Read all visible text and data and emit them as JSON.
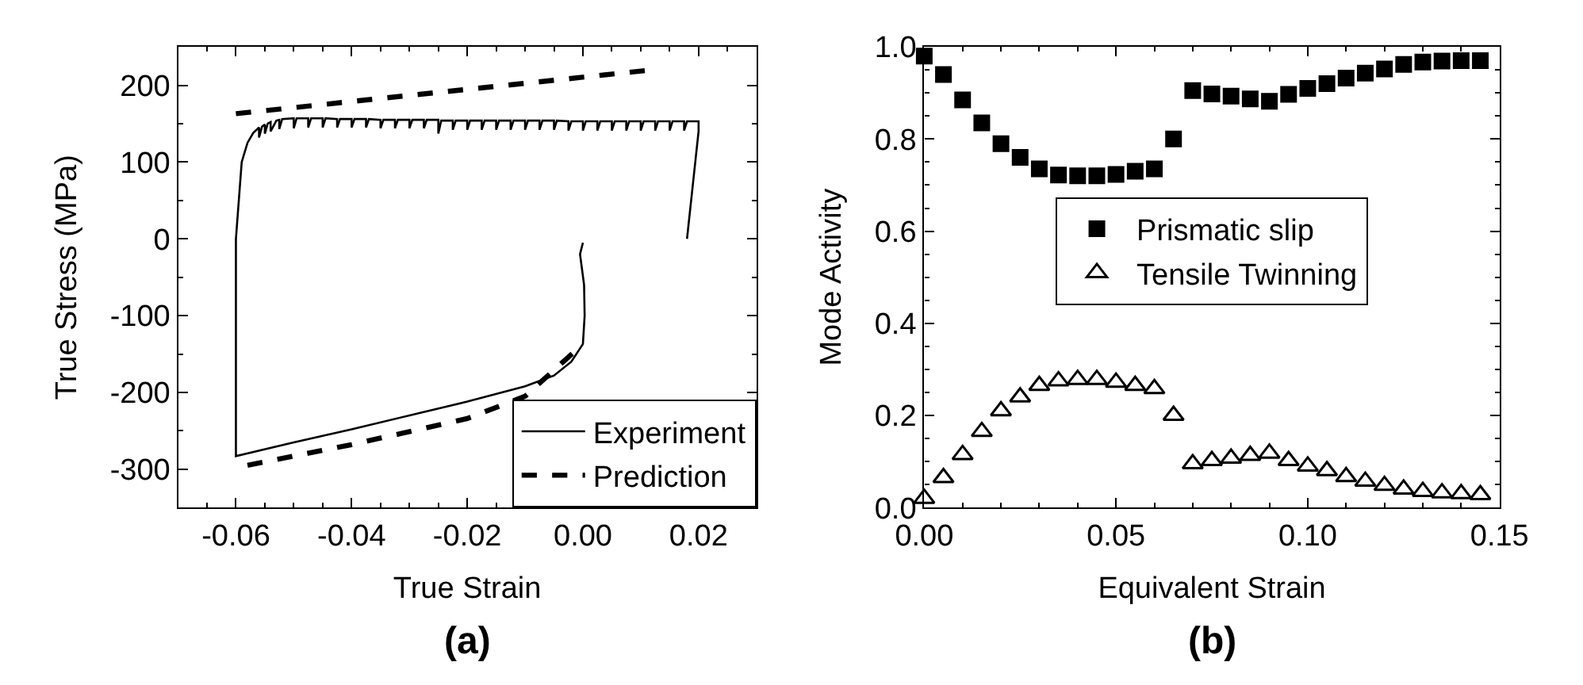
{
  "chart_data": [
    {
      "type": "line",
      "title": "(a)",
      "xlabel": "True Strain",
      "ylabel": "True Stress (MPa)",
      "xlim": [
        -0.07,
        0.03
      ],
      "ylim": [
        -350,
        250
      ],
      "xticks": [
        {
          "value": -0.06,
          "label": "-0.06"
        },
        {
          "value": -0.04,
          "label": "-0.04"
        },
        {
          "value": -0.02,
          "label": "-0.02"
        },
        {
          "value": 0,
          "label": "0.00"
        },
        {
          "value": 0.02,
          "label": "0.02"
        }
      ],
      "yticks": [
        -300,
        -200,
        -100,
        0,
        100,
        200
      ],
      "legend": "bottom right",
      "marker": "none",
      "series": [
        {
          "name": "Experiment",
          "color": "#000000",
          "line_style": "solid",
          "x": [
            0.0,
            -0.0005,
            0.0002,
            0.0003,
            0.0,
            -0.002,
            -0.005,
            -0.01,
            -0.02,
            -0.03,
            -0.04,
            -0.05,
            -0.06,
            -0.06,
            -0.0595,
            -0.059,
            -0.058,
            -0.057,
            -0.056,
            -0.056,
            -0.0555,
            -0.055,
            -0.055,
            -0.0545,
            -0.054,
            -0.054,
            -0.053,
            -0.0525,
            -0.0525,
            -0.052,
            -0.05,
            -0.05,
            -0.0495,
            -0.0475,
            -0.0475,
            -0.047,
            -0.045,
            -0.045,
            -0.0445,
            -0.0425,
            -0.0425,
            -0.042,
            -0.04,
            -0.04,
            -0.0395,
            -0.0375,
            -0.0375,
            -0.037,
            -0.035,
            -0.035,
            -0.0345,
            -0.0325,
            -0.0325,
            -0.032,
            -0.03,
            -0.03,
            -0.0295,
            -0.0275,
            -0.0275,
            -0.027,
            -0.025,
            -0.025,
            -0.0245,
            -0.0225,
            -0.0225,
            -0.022,
            -0.02,
            -0.02,
            -0.0195,
            -0.0175,
            -0.0175,
            -0.017,
            -0.015,
            -0.015,
            -0.0145,
            -0.0125,
            -0.0125,
            -0.012,
            -0.01,
            -0.01,
            -0.0095,
            -0.0075,
            -0.0075,
            -0.007,
            -0.005,
            -0.005,
            -0.0045,
            -0.0025,
            -0.0025,
            -0.002,
            0.0,
            0.0,
            0.0005,
            0.0025,
            0.0025,
            0.003,
            0.005,
            0.005,
            0.0055,
            0.0075,
            0.0075,
            0.008,
            0.01,
            0.01,
            0.0105,
            0.0125,
            0.0125,
            0.013,
            0.015,
            0.015,
            0.0155,
            0.0175,
            0.0175,
            0.018,
            0.02,
            0.02,
            0.018
          ],
          "values": [
            -5,
            -20,
            -60,
            -100,
            -137,
            -160,
            -178,
            -192,
            -212,
            -230,
            -248,
            -265,
            -283,
            0,
            50,
            100,
            125,
            138,
            145,
            132,
            146,
            149,
            137,
            150,
            152,
            140,
            154,
            155,
            143,
            156,
            157,
            144,
            157,
            157,
            145,
            157,
            157,
            145,
            157,
            156,
            145,
            156,
            156,
            145,
            156,
            156,
            145,
            156,
            155,
            144,
            155,
            155,
            144,
            155,
            155,
            144,
            155,
            155,
            144,
            155,
            155,
            137,
            154,
            154,
            142,
            154,
            154,
            142,
            154,
            154,
            142,
            154,
            154,
            142,
            154,
            154,
            142,
            154,
            154,
            142,
            154,
            154,
            142,
            154,
            154,
            142,
            154,
            153,
            141,
            153,
            153,
            141,
            153,
            153,
            141,
            153,
            153,
            141,
            153,
            153,
            141,
            153,
            153,
            141,
            153,
            153,
            141,
            153,
            153,
            141,
            153,
            153,
            141,
            153,
            153,
            140,
            0
          ]
        },
        {
          "name": "Prediction",
          "color": "#000000",
          "line_style": "dashed",
          "x": [
            -0.06,
            0.012,
            null,
            -0.058,
            -0.04,
            -0.02,
            -0.01,
            0.0
          ],
          "values": [
            163,
            220,
            null,
            -295,
            -268,
            -234,
            -205,
            -137
          ]
        }
      ]
    },
    {
      "type": "scatter",
      "title": "(b)",
      "xlabel": "Equivalent Strain",
      "ylabel": "Mode Activity",
      "xlim": [
        0,
        0.15
      ],
      "ylim": [
        0,
        1
      ],
      "xticks": [
        {
          "value": 0,
          "label": "0.00"
        },
        {
          "value": 0.05,
          "label": "0.05"
        },
        {
          "value": 0.1,
          "label": "0.10"
        },
        {
          "value": 0.15,
          "label": "0.15"
        }
      ],
      "yticks": [
        {
          "value": 0,
          "label": "0.0"
        },
        {
          "value": 0.2,
          "label": "0.2"
        },
        {
          "value": 0.4,
          "label": "0.4"
        },
        {
          "value": 0.6,
          "label": "0.6"
        },
        {
          "value": 0.8,
          "label": "0.8"
        },
        {
          "value": 1,
          "label": "1.0"
        }
      ],
      "legend": "center",
      "x": [
        0,
        0.005,
        0.01,
        0.015,
        0.02,
        0.025,
        0.03,
        0.035,
        0.04,
        0.045,
        0.05,
        0.055,
        0.06,
        0.065,
        0.07,
        0.075,
        0.08,
        0.085,
        0.09,
        0.095,
        0.1,
        0.105,
        0.11,
        0.115,
        0.12,
        0.125,
        0.13,
        0.135,
        0.14,
        0.145
      ],
      "series": [
        {
          "name": "Prismatic slip",
          "color": "#000000",
          "marker": "square",
          "values": [
            0.98,
            0.94,
            0.885,
            0.835,
            0.79,
            0.76,
            0.735,
            0.722,
            0.72,
            0.72,
            0.723,
            0.73,
            0.735,
            0.8,
            0.905,
            0.898,
            0.893,
            0.887,
            0.882,
            0.897,
            0.91,
            0.92,
            0.932,
            0.943,
            0.952,
            0.962,
            0.967,
            0.969,
            0.97,
            0.97
          ]
        },
        {
          "name": "Tensile Twinning",
          "color": "#000000",
          "marker": "triangle",
          "values": [
            0.02,
            0.065,
            0.115,
            0.165,
            0.21,
            0.24,
            0.265,
            0.275,
            0.278,
            0.278,
            0.272,
            0.265,
            0.258,
            0.2,
            0.095,
            0.102,
            0.107,
            0.113,
            0.118,
            0.102,
            0.09,
            0.08,
            0.067,
            0.057,
            0.048,
            0.04,
            0.035,
            0.032,
            0.03,
            0.028
          ]
        }
      ]
    }
  ]
}
